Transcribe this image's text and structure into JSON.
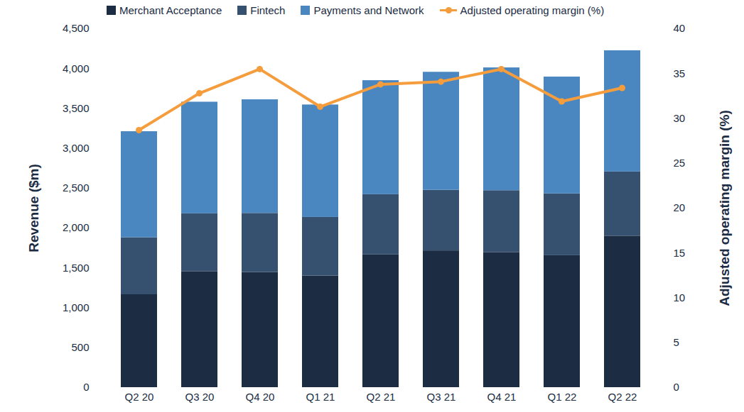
{
  "chart_data": {
    "type": "bar",
    "stacked": true,
    "categories": [
      "Q2 20",
      "Q3 20",
      "Q4 20",
      "Q1 21",
      "Q2 21",
      "Q3 21",
      "Q4 21",
      "Q1 22",
      "Q2 22"
    ],
    "series": [
      {
        "name": "Merchant Acceptance",
        "color": "#1b2c43",
        "values": [
          1165,
          1455,
          1445,
          1400,
          1665,
          1715,
          1695,
          1655,
          1900
        ]
      },
      {
        "name": "Fintech",
        "color": "#36516f",
        "values": [
          715,
          725,
          740,
          735,
          755,
          760,
          775,
          775,
          805
        ]
      },
      {
        "name": "Payments and Network",
        "color": "#4a87c1",
        "values": [
          1330,
          1400,
          1425,
          1410,
          1430,
          1480,
          1540,
          1465,
          1520
        ]
      },
      {
        "name": "Adjusted operating margin (%)",
        "type": "line",
        "axis": "y2",
        "color": "#f59d3d",
        "marker": "circle",
        "values": [
          28.7,
          32.8,
          35.5,
          31.3,
          33.8,
          34.1,
          35.5,
          31.9,
          33.4
        ]
      }
    ],
    "y_label": "Revenue ($m)",
    "y2_label": "Adjusted operating margin (%)",
    "ylim": [
      0,
      4500
    ],
    "yticks": [
      0,
      500,
      {
        "value": 1000,
        "label": "1,000"
      },
      {
        "value": 1500,
        "label": "1,500"
      },
      {
        "value": 2000,
        "label": "2,000"
      },
      {
        "value": 2500,
        "label": "2,500"
      },
      {
        "value": 3000,
        "label": "3,000"
      },
      {
        "value": 3500,
        "label": "3,500"
      },
      {
        "value": 4000,
        "label": "4,000"
      },
      {
        "value": 4500,
        "label": "4,500"
      }
    ],
    "y2lim": [
      0,
      40
    ],
    "y2ticks": [
      0,
      5,
      10,
      15,
      20,
      25,
      30,
      35,
      40
    ],
    "grid": false,
    "legend": "top"
  }
}
